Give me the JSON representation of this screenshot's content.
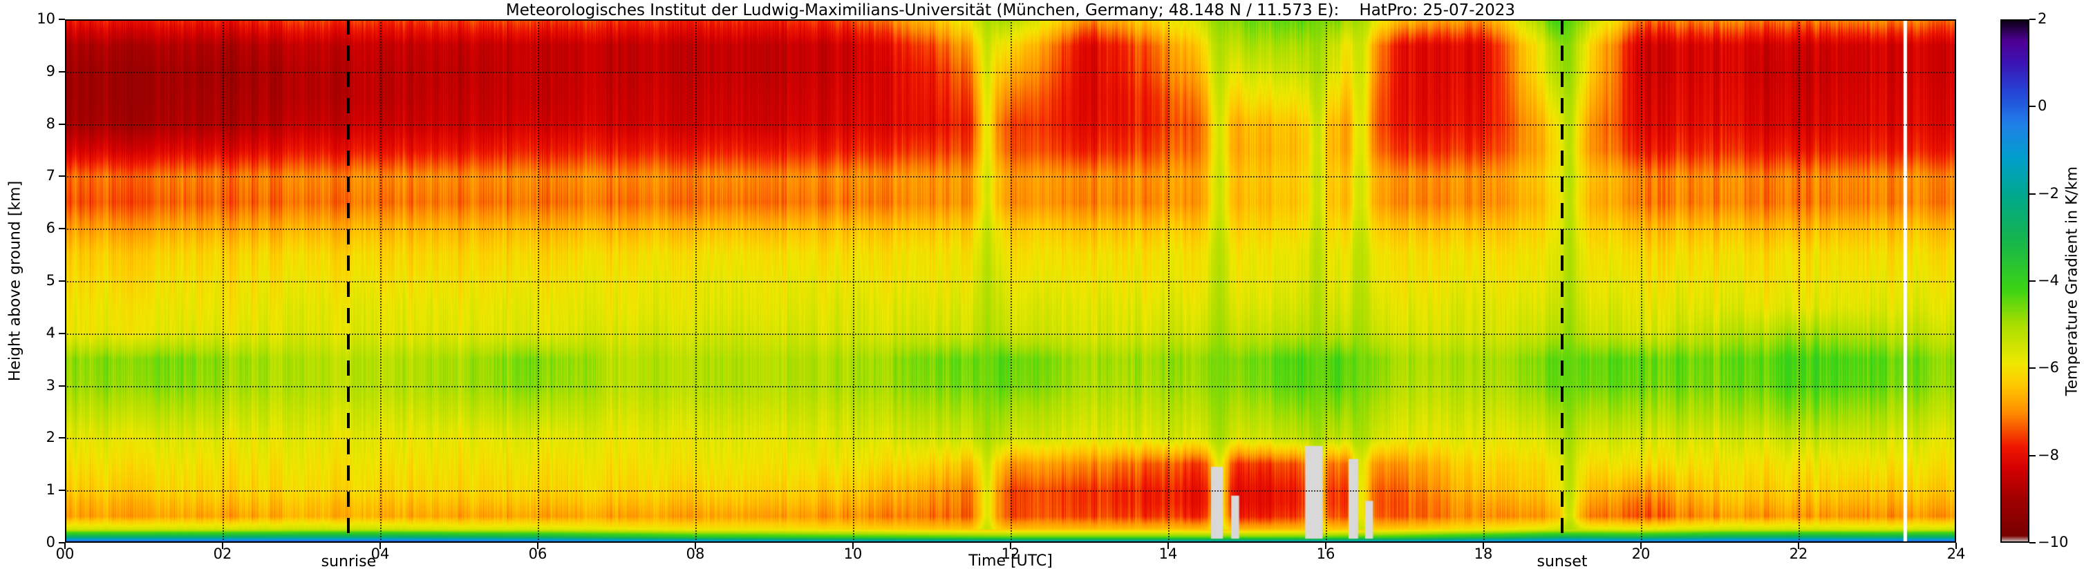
{
  "title": "Meteorologisches Institut der Ludwig-Maximilians-Universität (München, Germany; 48.148 N / 11.573 E):    HatPro: 25-07-2023",
  "x_axis": {
    "label": "Time [UTC]",
    "ticks": [
      "00",
      "02",
      "04",
      "06",
      "08",
      "10",
      "12",
      "14",
      "16",
      "18",
      "20",
      "22",
      "24"
    ],
    "tick_values": [
      0,
      2,
      4,
      6,
      8,
      10,
      12,
      14,
      16,
      18,
      20,
      22,
      24
    ],
    "range": [
      0,
      24
    ]
  },
  "y_axis": {
    "label": "Height above ground [km]",
    "ticks": [
      "0",
      "1",
      "2",
      "3",
      "4",
      "5",
      "6",
      "7",
      "8",
      "9",
      "10"
    ],
    "tick_values": [
      0,
      1,
      2,
      3,
      4,
      5,
      6,
      7,
      8,
      9,
      10
    ],
    "range": [
      0,
      10
    ]
  },
  "colorbar": {
    "label": "Temperature Gradient in K/km",
    "ticks": [
      "2",
      "0",
      "−2",
      "−4",
      "−6",
      "−8",
      "−10"
    ],
    "tick_values": [
      2,
      0,
      -2,
      -4,
      -6,
      -8,
      -10
    ],
    "range": [
      -10,
      2
    ],
    "colormap_stops": [
      [
        -10.0,
        "#dcdcdc"
      ],
      [
        -9.85,
        "#780000"
      ],
      [
        -9.0,
        "#a00000"
      ],
      [
        -8.3,
        "#d40000"
      ],
      [
        -7.8,
        "#f01800"
      ],
      [
        -7.0,
        "#ff9000"
      ],
      [
        -6.4,
        "#ffc800"
      ],
      [
        -5.9,
        "#f0e800"
      ],
      [
        -5.0,
        "#aade00"
      ],
      [
        -4.2,
        "#3cd414"
      ],
      [
        -3.0,
        "#14b450"
      ],
      [
        -2.0,
        "#00a890"
      ],
      [
        -1.2,
        "#00a0cc"
      ],
      [
        -0.4,
        "#2080e8"
      ],
      [
        0.3,
        "#2448d8"
      ],
      [
        1.0,
        "#3c14b4"
      ],
      [
        1.5,
        "#500096"
      ],
      [
        2.0,
        "#0a0010"
      ]
    ]
  },
  "annotations": {
    "sunrise": {
      "label": "sunrise",
      "time_utc": 3.6
    },
    "sunset": {
      "label": "sunset",
      "time_utc": 19.0
    }
  },
  "chart_data": {
    "type": "heatmap",
    "unit": "K/km",
    "x_hours": [
      0,
      1,
      2,
      3,
      4,
      5,
      6,
      7,
      8,
      9,
      10,
      11,
      12,
      13,
      14,
      15,
      16,
      17,
      18,
      19,
      20,
      21,
      22,
      23,
      24
    ],
    "y_km": [
      0,
      0.1,
      0.25,
      0.5,
      0.75,
      1,
      1.5,
      2,
      2.5,
      3,
      3.5,
      4,
      4.5,
      5,
      5.5,
      6,
      6.5,
      7,
      7.5,
      8,
      8.5,
      9,
      9.5,
      10
    ],
    "values": [
      [
        0.8,
        0.8,
        0.8,
        0.9,
        0.9,
        0.7,
        0.5,
        0.2,
        0,
        -0.2,
        -0.4,
        -0.5,
        -0.6,
        -0.6,
        -0.6,
        -0.7,
        -0.6,
        -0.4,
        0,
        0.4,
        0.3,
        0.6,
        0.7,
        0.7,
        0.8
      ],
      [
        -2.5,
        -2.5,
        -2.5,
        -2.4,
        -2.4,
        -2.6,
        -2.8,
        -3.2,
        -3.6,
        -3.8,
        -4,
        -4.2,
        -4.4,
        -4.4,
        -4.4,
        -4.5,
        -4.4,
        -4,
        -3.4,
        -2.8,
        -3,
        -2.6,
        -2.5,
        -2.6,
        -2.5
      ],
      [
        -5.5,
        -5.5,
        -5.5,
        -5.4,
        -5.4,
        -5.6,
        -5.6,
        -5.8,
        -6,
        -6,
        -6.2,
        -6.4,
        -6.5,
        -6.5,
        -6.5,
        -6.6,
        -6.5,
        -6.3,
        -6,
        -5.6,
        -5.8,
        -5.5,
        -5.5,
        -5.6,
        -5.5
      ],
      [
        -6.8,
        -6.8,
        -6.8,
        -6.7,
        -6.7,
        -6.8,
        -6.8,
        -6.8,
        -6.9,
        -6.9,
        -7,
        -7.2,
        -7.4,
        -7.5,
        -7.6,
        -7.8,
        -7.6,
        -7.3,
        -7,
        -6.8,
        -7.4,
        -6.9,
        -6.9,
        -7,
        -6.9
      ],
      [
        -6.6,
        -6.6,
        -6.5,
        -6.5,
        -6.5,
        -6.5,
        -6.5,
        -6.5,
        -6.6,
        -6.6,
        -6.7,
        -7,
        -7.4,
        -7.6,
        -7.8,
        -8,
        -7.8,
        -7.3,
        -6.8,
        -6.5,
        -7.2,
        -6.6,
        -6.6,
        -6.7,
        -6.6
      ],
      [
        -6.3,
        -6.3,
        -6.2,
        -6.2,
        -6.2,
        -6.2,
        -6.2,
        -6.2,
        -6.3,
        -6.3,
        -6.4,
        -6.8,
        -7.4,
        -7.6,
        -7.8,
        -8,
        -7.8,
        -7.2,
        -6.5,
        -6.2,
        -6.8,
        -6.3,
        -6.3,
        -6.4,
        -6.3
      ],
      [
        -6,
        -6,
        -6,
        -6,
        -6,
        -6,
        -6,
        -6,
        -6,
        -6,
        -6,
        -6.2,
        -6.8,
        -7,
        -7.4,
        -7.6,
        -7.4,
        -6.8,
        -6.2,
        -6,
        -6,
        -6,
        -6,
        -6,
        -6
      ],
      [
        -5.7,
        -5.7,
        -5.7,
        -5.8,
        -5.8,
        -5.8,
        -5.7,
        -5.8,
        -5.8,
        -5.8,
        -5.7,
        -5.5,
        -5.4,
        -5.7,
        -5.6,
        -5.5,
        -5.3,
        -5.7,
        -5.8,
        -5.5,
        -5.5,
        -5.6,
        -5.4,
        -5.5,
        -5.7
      ],
      [
        -5.3,
        -5.2,
        -5.3,
        -5.5,
        -5.5,
        -5.4,
        -5.2,
        -5.5,
        -5.5,
        -5.5,
        -5.4,
        -5.1,
        -5,
        -5.4,
        -5.3,
        -5.1,
        -4.8,
        -5.4,
        -5.5,
        -5,
        -5,
        -5.1,
        -4.8,
        -5,
        -5.3
      ],
      [
        -4.9,
        -4.7,
        -4.9,
        -5.2,
        -5.2,
        -5,
        -4.7,
        -5.2,
        -5.2,
        -5.2,
        -5.1,
        -4.7,
        -4.5,
        -5.1,
        -5,
        -4.7,
        -4.3,
        -5.1,
        -5.2,
        -4.5,
        -4.5,
        -4.7,
        -4.3,
        -4.5,
        -4.9
      ],
      [
        -4.8,
        -4.6,
        -4.8,
        -5.2,
        -5.2,
        -5,
        -4.6,
        -5.2,
        -5.2,
        -5.2,
        -5.1,
        -4.6,
        -4.4,
        -5,
        -4.9,
        -4.6,
        -4.2,
        -5,
        -5.1,
        -4.4,
        -4.4,
        -4.6,
        -4.2,
        -4.4,
        -4.8
      ],
      [
        -5.8,
        -5.8,
        -5.7,
        -5.7,
        -5.7,
        -5.7,
        -5.7,
        -5.6,
        -5.6,
        -5.6,
        -5.6,
        -5.5,
        -5.4,
        -5.6,
        -5.5,
        -5.3,
        -5.3,
        -5.5,
        -5.6,
        -5.2,
        -5.5,
        -5.3,
        -5,
        -5.2,
        -5.4
      ],
      [
        -5.9,
        -5.9,
        -5.9,
        -5.8,
        -5.8,
        -5.8,
        -5.8,
        -5.8,
        -5.8,
        -5.8,
        -5.7,
        -5.7,
        -5.6,
        -5.7,
        -5.7,
        -5.6,
        -5.6,
        -5.7,
        -5.7,
        -5.5,
        -5.7,
        -5.7,
        -5.8,
        -5.7,
        -5.7
      ],
      [
        -6.1,
        -6.1,
        -6,
        -6,
        -6,
        -6,
        -6,
        -5.9,
        -5.9,
        -5.9,
        -5.9,
        -5.9,
        -5.8,
        -5.9,
        -5.9,
        -5.8,
        -5.8,
        -5.9,
        -5.9,
        -5.7,
        -5.9,
        -5.9,
        -6,
        -5.9,
        -5.9
      ],
      [
        -6.3,
        -6.3,
        -6.2,
        -6.2,
        -6.2,
        -6.2,
        -6.2,
        -6.1,
        -6.1,
        -6.1,
        -6.1,
        -6,
        -6,
        -6.1,
        -6,
        -5.9,
        -5.9,
        -6,
        -6.1,
        -5.8,
        -6.1,
        -6.1,
        -6.1,
        -6.1,
        -6.1
      ],
      [
        -6.8,
        -6.8,
        -6.7,
        -6.7,
        -6.6,
        -6.6,
        -6.6,
        -6.6,
        -6.6,
        -6.6,
        -6.5,
        -6.4,
        -6.3,
        -6.5,
        -6.4,
        -6.2,
        -6.2,
        -6.4,
        -6.5,
        -6,
        -6.5,
        -6.5,
        -6.6,
        -6.5,
        -6.5
      ],
      [
        -7.4,
        -7.4,
        -7.3,
        -7.3,
        -7.2,
        -7.2,
        -7.2,
        -7.2,
        -7.3,
        -7.3,
        -7.2,
        -7,
        -6.9,
        -7.1,
        -7,
        -6.5,
        -6.5,
        -7,
        -7.1,
        -6.2,
        -7.1,
        -7.1,
        -7.2,
        -7.1,
        -7.1
      ],
      [
        -7.2,
        -7.2,
        -7.1,
        -7.1,
        -7,
        -7,
        -7,
        -7,
        -7.1,
        -7.1,
        -7,
        -6.9,
        -6.8,
        -7,
        -6.9,
        -6.4,
        -6.4,
        -6.9,
        -7,
        -6,
        -7,
        -7,
        -7.1,
        -7,
        -7
      ],
      [
        -8.2,
        -8.2,
        -8.1,
        -8,
        -7.9,
        -7.9,
        -7.8,
        -7.8,
        -7.9,
        -7.9,
        -7.8,
        -7.6,
        -7.3,
        -7.8,
        -7.4,
        -6.6,
        -6.6,
        -7.6,
        -7.7,
        -6.2,
        -7.8,
        -7.7,
        -7.9,
        -7.8,
        -7.8
      ],
      [
        -8.9,
        -8.9,
        -8.8,
        -8.6,
        -8.4,
        -8.4,
        -8.3,
        -8.3,
        -8.4,
        -8.4,
        -8.2,
        -8,
        -7.4,
        -8.1,
        -7.6,
        -6.5,
        -6.5,
        -7.9,
        -8,
        -6,
        -8.1,
        -8,
        -8.3,
        -8.1,
        -8.1
      ],
      [
        -9,
        -9,
        -8.9,
        -8.8,
        -8.6,
        -8.5,
        -8.5,
        -8.4,
        -8.5,
        -8.5,
        -8.3,
        -7.9,
        -7,
        -8.2,
        -7.5,
        -6,
        -6,
        -8,
        -8.1,
        -5.5,
        -8.2,
        -8.1,
        -8.4,
        -8.2,
        -8.2
      ],
      [
        -9,
        -9,
        -9,
        -8.8,
        -8.6,
        -8.6,
        -8.5,
        -8.5,
        -8.6,
        -8.6,
        -8.4,
        -7.8,
        -6.5,
        -8.2,
        -7.2,
        -5.5,
        -5.5,
        -8,
        -8.2,
        -5,
        -8.3,
        -8.2,
        -8.5,
        -8.3,
        -8.3
      ],
      [
        -8.8,
        -8.8,
        -8.8,
        -8.6,
        -8.5,
        -8.5,
        -8.5,
        -8.5,
        -8.6,
        -8.6,
        -8.4,
        -7.5,
        -6,
        -8.2,
        -7,
        -5,
        -5.2,
        -8,
        -8.2,
        -4.8,
        -8.3,
        -8.2,
        -8.4,
        -8.3,
        -8.3
      ],
      [
        -7.8,
        -7.8,
        -7.8,
        -7.6,
        -7.6,
        -7.5,
        -7.5,
        -7.6,
        -7.8,
        -7.8,
        -7.5,
        -6.5,
        -5,
        -7,
        -6,
        -4.5,
        -4.5,
        -6.5,
        -7,
        -4,
        -7.2,
        -7,
        -7.2,
        -7,
        -7.2
      ]
    ],
    "gray_columns": [
      {
        "time": 14.62,
        "top_km": 1.45,
        "width_h": 0.15
      },
      {
        "time": 14.85,
        "top_km": 0.9,
        "width_h": 0.1
      },
      {
        "time": 15.85,
        "top_km": 1.85,
        "width_h": 0.22
      },
      {
        "time": 16.35,
        "top_km": 1.6,
        "width_h": 0.12
      },
      {
        "time": 16.55,
        "top_km": 0.8,
        "width_h": 0.1
      }
    ],
    "green_streak_times": [
      11.7,
      14.65,
      15.9,
      16.45,
      19.1
    ],
    "missing_data_times": [
      23.35
    ]
  }
}
